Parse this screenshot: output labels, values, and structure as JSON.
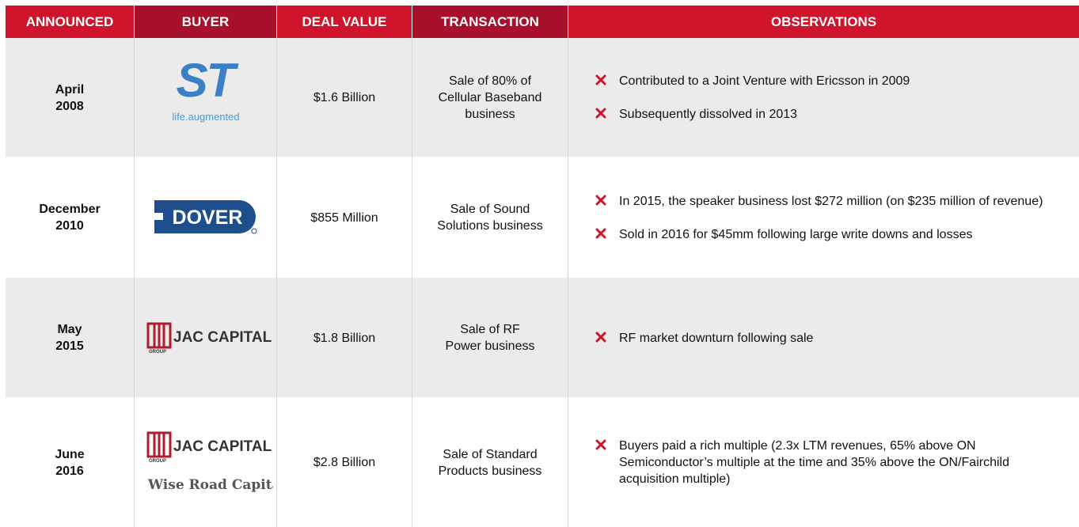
{
  "header": [
    "ANNOUNCED",
    "BUYER",
    "DEAL VALUE",
    "TRANSACTION",
    "OBSERVATIONS"
  ],
  "rows": [
    {
      "announced": [
        "April",
        "2008"
      ],
      "buyer": {
        "logo": "ST",
        "tagline": "life.augmented"
      },
      "deal_value": "$1.6 Billion",
      "transaction": [
        "Sale of 80% of",
        "Cellular Baseband",
        "business"
      ],
      "observations": [
        "Contributed to a Joint Venture with Ericsson in 2009",
        "Subsequently dissolved in 2013"
      ]
    },
    {
      "announced": [
        "December",
        "2010"
      ],
      "buyer": {
        "logo": "DOVER"
      },
      "deal_value": "$855 Million",
      "transaction": [
        "Sale of Sound",
        "Solutions business"
      ],
      "observations": [
        "In 2015, the speaker business lost $272 million (on $235 million of revenue)",
        "Sold in 2016 for $45mm following large write downs and losses"
      ]
    },
    {
      "announced": [
        "May",
        "2015"
      ],
      "buyer": {
        "logo": "JAC CAPITAL",
        "sub": "GROUP"
      },
      "deal_value": "$1.8 Billion",
      "transaction": [
        "Sale of RF",
        "Power business"
      ],
      "observations": [
        "RF market downturn following sale"
      ]
    },
    {
      "announced": [
        "June",
        "2016"
      ],
      "buyer": {
        "logo": "JAC CAPITAL",
        "sub": "GROUP",
        "second": "Wise Road Capital"
      },
      "deal_value": "$2.8 Billion",
      "transaction": [
        "Sale of Standard",
        "Products business"
      ],
      "observations": [
        "Buyers paid a rich multiple (2.3x LTM revenues, 65% above ON Semiconductor’s multiple at the time and 35% above the ON/Fairchild acquisition multiple)"
      ]
    }
  ]
}
